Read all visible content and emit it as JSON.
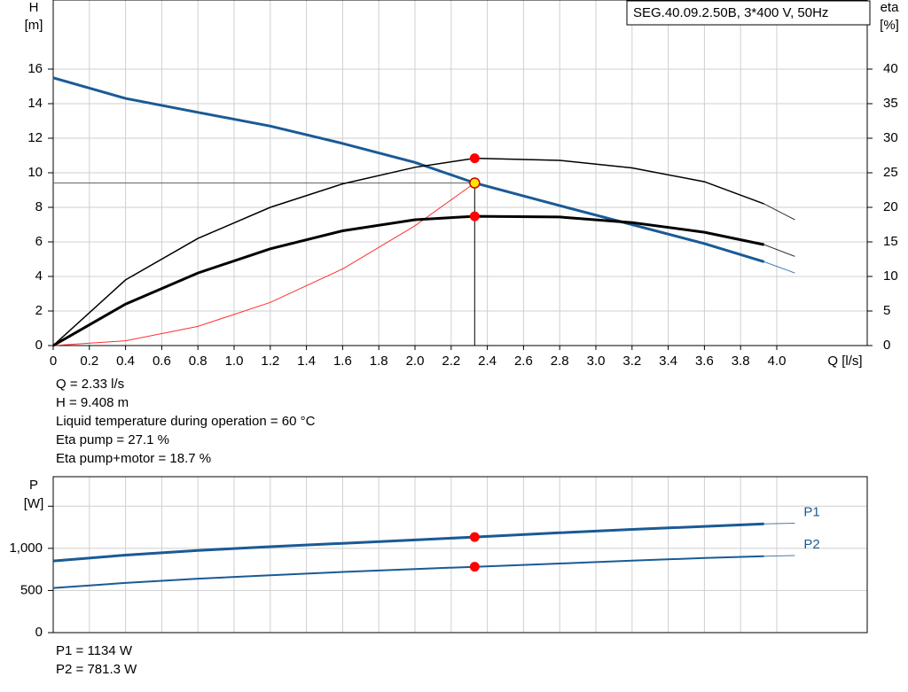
{
  "chart_data": [
    {
      "type": "line",
      "legend_box": "SEG.40.09.2.50B, 3*400 V, 50Hz",
      "y_label": "H",
      "y_unit": "[m]",
      "y2_label": "eta",
      "y2_unit": "[%]",
      "x_label": "Q [l/s]",
      "xlim": [
        0,
        4.5
      ],
      "xticks": [
        0,
        0.2,
        0.4,
        0.6,
        0.8,
        {
          "value": 1,
          "label": "1.0"
        },
        1.2,
        1.4,
        1.6,
        1.8,
        {
          "value": 2,
          "label": "2.0"
        },
        2.2,
        2.4,
        2.6,
        2.8,
        {
          "value": 3,
          "label": "3.0"
        },
        3.2,
        3.4,
        3.6,
        3.8,
        {
          "value": 4,
          "label": "4.0"
        }
      ],
      "ylim": [
        0,
        20
      ],
      "yticks": [
        0,
        2,
        4,
        6,
        8,
        10,
        12,
        14,
        16
      ],
      "y2lim": [
        0,
        50
      ],
      "y2ticks": [
        0,
        5,
        10,
        15,
        20,
        25,
        30,
        35,
        40
      ],
      "grid": true,
      "series": [
        {
          "color": "#1a5a96",
          "line_width": 3,
          "marker_color": "#ffe600",
          "x": [
            0,
            0.4,
            0.8,
            1.2,
            1.6,
            2.0,
            2.33,
            2.8,
            3.2,
            3.6,
            3.93
          ],
          "values": [
            15.5,
            14.3,
            13.5,
            12.7,
            11.7,
            10.6,
            9.408,
            8.1,
            7.0,
            5.9,
            4.85
          ],
          "extension": {
            "x": [
              3.93,
              4.1
            ],
            "values": [
              4.85,
              4.2
            ]
          }
        },
        {
          "color": "#000000",
          "line_width": 1.5,
          "axis": "y2",
          "marker_color": "#ff0000",
          "x": [
            0,
            0.4,
            0.8,
            1.2,
            1.6,
            2.0,
            2.33,
            2.8,
            3.2,
            3.6,
            3.93
          ],
          "values": [
            0,
            9.5,
            15.5,
            20,
            23.4,
            25.8,
            27.1,
            26.8,
            25.7,
            23.7,
            20.5
          ],
          "extension": {
            "x": [
              3.93,
              4.1
            ],
            "values": [
              20.5,
              18.2
            ]
          }
        },
        {
          "color": "#000000",
          "line_width": 3,
          "axis": "y2",
          "marker_color": "#ff0000",
          "x": [
            0,
            0.4,
            0.8,
            1.2,
            1.6,
            2.0,
            2.33,
            2.8,
            3.2,
            3.6,
            3.93
          ],
          "values": [
            0,
            6,
            10.5,
            14,
            16.6,
            18.2,
            18.7,
            18.6,
            17.8,
            16.4,
            14.6
          ],
          "extension": {
            "x": [
              3.93,
              4.1
            ],
            "values": [
              14.6,
              12.9
            ]
          }
        }
      ],
      "system_curve": {
        "color": "#ff3030",
        "x": [
          0,
          0.4,
          0.8,
          1.2,
          1.6,
          2.0,
          2.33
        ],
        "values": [
          0,
          0.277,
          1.109,
          2.495,
          4.436,
          6.932,
          9.408
        ]
      },
      "operating_point": {
        "x": 2.33,
        "y": 9.408
      },
      "info": [
        "Q = 2.33 l/s",
        "H = 9.408 m",
        "Liquid temperature during operation = 60 °C",
        "Eta pump = 27.1 %",
        "Eta pump+motor = 18.7 %"
      ]
    },
    {
      "type": "line",
      "y_label": "P",
      "y_unit": "[W]",
      "xlim": [
        0,
        4.5
      ],
      "ylim": [
        0,
        1850
      ],
      "yticks": [
        0,
        500,
        {
          "value": 1000,
          "label": "1,000"
        },
        {
          "value": 1500,
          "label": ""
        }
      ],
      "grid": true,
      "series": [
        {
          "name": "P1",
          "color": "#1a5a96",
          "line_width": 3,
          "marker_color": "#ff0000",
          "x": [
            0,
            0.4,
            0.8,
            1.2,
            1.6,
            2.0,
            2.33,
            2.8,
            3.2,
            3.6,
            3.93
          ],
          "values": [
            850,
            920,
            975,
            1020,
            1060,
            1100,
            1134,
            1185,
            1225,
            1260,
            1290
          ],
          "extension": {
            "x": [
              3.93,
              4.1
            ],
            "values": [
              1290,
              1298
            ]
          }
        },
        {
          "name": "P2",
          "color": "#1a5a96",
          "line_width": 2,
          "marker_color": "#ff0000",
          "x": [
            0,
            0.4,
            0.8,
            1.2,
            1.6,
            2.0,
            2.33,
            2.8,
            3.2,
            3.6,
            3.93
          ],
          "values": [
            530,
            590,
            640,
            680,
            720,
            755,
            781.3,
            820,
            855,
            885,
            907
          ],
          "extension": {
            "x": [
              3.93,
              4.1
            ],
            "values": [
              907,
              915
            ]
          }
        }
      ],
      "operating_point": {
        "x": 2.33
      },
      "info": [
        "P1 = 1134 W",
        "P2 = 781.3 W"
      ]
    }
  ]
}
